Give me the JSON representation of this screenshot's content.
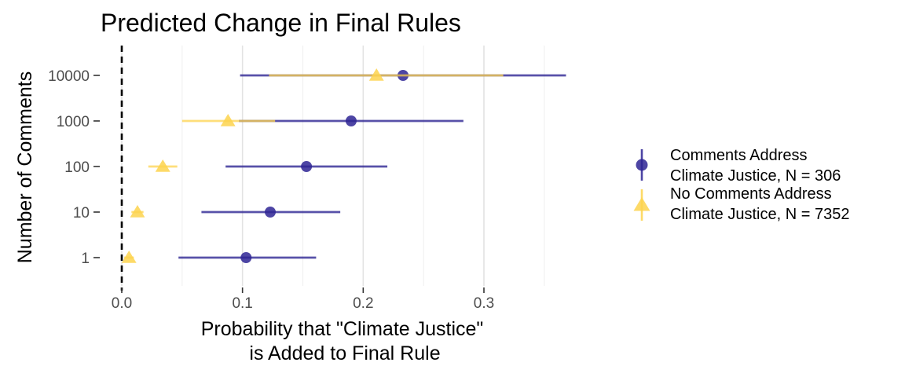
{
  "chart_data": {
    "type": "scatter",
    "title": "Predicted Change in Final Rules",
    "xlabel": [
      "Probability that \"Climate Justice\"",
      "is Added to Final Rule"
    ],
    "ylabel": "Number of Comments",
    "xlim": [
      -0.01,
      0.36
    ],
    "x_ticks": [
      "0.0",
      "0.1",
      "0.2",
      "0.3"
    ],
    "x_tick_values": [
      0.0,
      0.1,
      0.2,
      0.3
    ],
    "categories": [
      "1",
      "10",
      "100",
      "1000",
      "10000"
    ],
    "reference_line": {
      "x": 0.0,
      "style": "dashed",
      "color": "#000000"
    },
    "grid": "vertical",
    "legend_position": "right",
    "series": [
      {
        "name": [
          "Comments Address",
          "Climate Justice, N = 306"
        ],
        "marker": "circle",
        "color": "#2e2594",
        "points": [
          {
            "category": "1",
            "estimate": 0.103,
            "low": 0.047,
            "high": 0.161
          },
          {
            "category": "10",
            "estimate": 0.123,
            "low": 0.066,
            "high": 0.181
          },
          {
            "category": "100",
            "estimate": 0.153,
            "low": 0.086,
            "high": 0.22
          },
          {
            "category": "1000",
            "estimate": 0.19,
            "low": 0.097,
            "high": 0.283
          },
          {
            "category": "10000",
            "estimate": 0.233,
            "low": 0.098,
            "high": 0.368
          }
        ]
      },
      {
        "name": [
          "No Comments Address",
          "Climate Justice, N = 7352"
        ],
        "marker": "triangle",
        "color": "#fdd34d",
        "points": [
          {
            "category": "1",
            "estimate": 0.006,
            "low": 0.002,
            "high": 0.01
          },
          {
            "category": "10",
            "estimate": 0.013,
            "low": 0.008,
            "high": 0.018
          },
          {
            "category": "100",
            "estimate": 0.034,
            "low": 0.022,
            "high": 0.046
          },
          {
            "category": "1000",
            "estimate": 0.088,
            "low": 0.05,
            "high": 0.127
          },
          {
            "category": "10000",
            "estimate": 0.211,
            "low": 0.122,
            "high": 0.316
          }
        ]
      }
    ]
  }
}
